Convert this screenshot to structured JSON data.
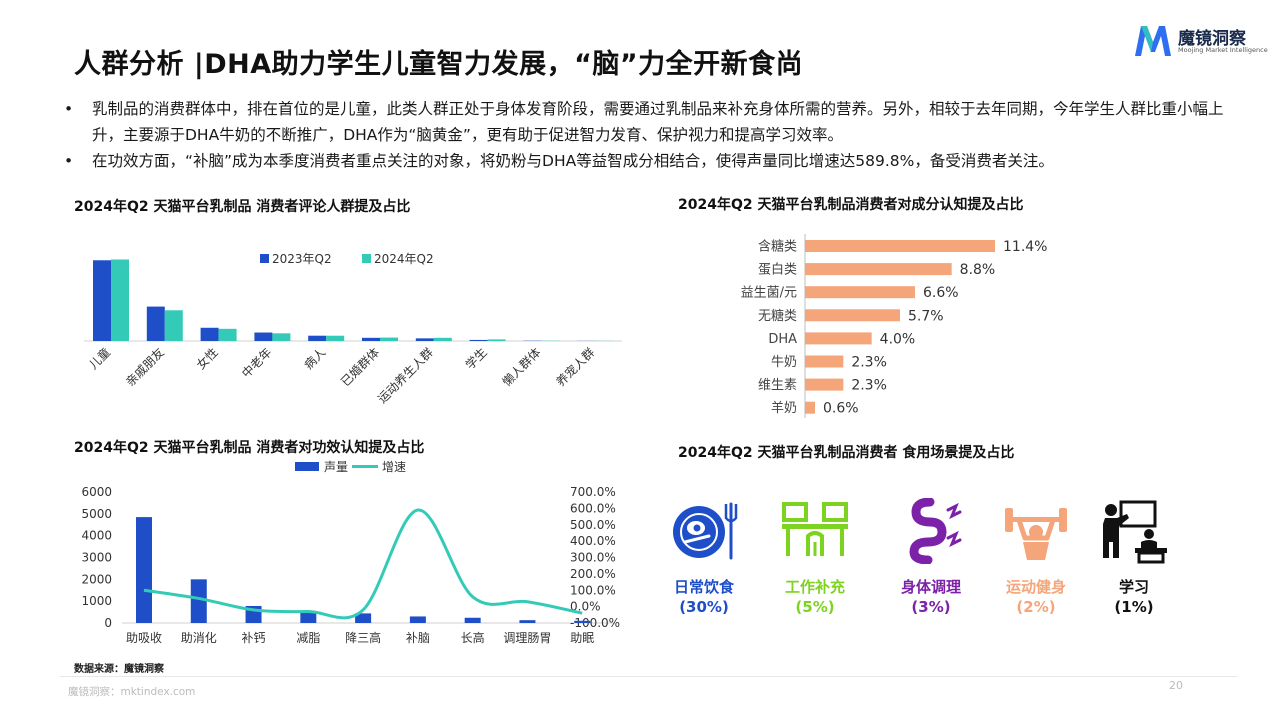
{
  "title": "人群分析 |DHA助力学生儿童智力发展，“脑”力全开新食尚",
  "logo": {
    "name": "魔镜洞察",
    "sub": "Moojing Market Intelligence"
  },
  "bullets": [
    "乳制品的消费群体中，排在首位的是儿童，此类人群正处于身体发育阶段，需要通过乳制品来补充身体所需的营养。另外，相较于去年同期，今年学生人群比重小幅上升，主要源于DHA牛奶的不断推广，DHA作为“脑黄金”，更有助于促进智力发育、保护视力和提高学习效率。",
    "在功效方面，“补脑”成为本季度消费者重点关注的对象，将奶粉与DHA等益智成分相结合，使得声量同比增速达589.8%，备受消费者关注。"
  ],
  "chart_data": [
    {
      "type": "bar",
      "title": "2024年Q2 天猫平台乳制品 消费者评论人群提及占比",
      "categories": [
        "儿童",
        "亲戚朋友",
        "女性",
        "中老年",
        "病人",
        "已婚群体",
        "运动养生人群",
        "学生",
        "懒人群体",
        "养宠人群"
      ],
      "series": [
        {
          "name": "2023年Q2",
          "color": "#1f4fc8",
          "values": [
            30.5,
            13.0,
            5.0,
            3.2,
            2.0,
            1.2,
            1.0,
            0.4,
            0.1,
            0.05
          ]
        },
        {
          "name": "2024年Q2",
          "color": "#33cbb7",
          "values": [
            30.8,
            11.6,
            4.6,
            2.9,
            2.0,
            1.3,
            1.2,
            0.6,
            0.1,
            0.05
          ]
        }
      ],
      "ylim": [
        0,
        34
      ],
      "grid": false,
      "legend": "top"
    },
    {
      "type": "bar",
      "orientation": "horizontal",
      "title": "2024年Q2 天猫平台乳制品消费者对成分认知提及占比",
      "categories": [
        "含糖类",
        "蛋白类",
        "益生菌/元",
        "无糖类",
        "DHA",
        "牛奶",
        "维生素",
        "羊奶"
      ],
      "values": [
        11.4,
        8.8,
        6.6,
        5.7,
        4.0,
        2.3,
        2.3,
        0.6
      ],
      "value_labels": [
        "11.4%",
        "8.8%",
        "6.6%",
        "5.7%",
        "4.0%",
        "2.3%",
        "2.3%",
        "0.6%"
      ],
      "color": "#f5a57a",
      "xlim": [
        0,
        12
      ]
    },
    {
      "type": "bar",
      "title": "2024年Q2 天猫平台乳制品 消费者对功效认知提及占比",
      "categories": [
        "助吸收",
        "助消化",
        "补钙",
        "减脂",
        "降三高",
        "补脑",
        "长高",
        "调理肠胃",
        "助眠"
      ],
      "series": [
        {
          "name": "声量",
          "type": "bar",
          "axis": "left",
          "color": "#1f4fc8",
          "values": [
            4850,
            2000,
            780,
            470,
            440,
            300,
            240,
            130,
            100
          ]
        },
        {
          "name": "增速",
          "type": "line",
          "axis": "right",
          "color": "#33cbb7",
          "values": [
            100.0,
            50.0,
            -20.0,
            -30.0,
            -20.0,
            589.8,
            60.0,
            30.0,
            -40.0
          ]
        }
      ],
      "y_left": {
        "ticks": [
          "0",
          "1000",
          "2000",
          "3000",
          "4000",
          "5000",
          "6000"
        ],
        "range": [
          0,
          6000
        ]
      },
      "y_right": {
        "ticks": [
          "-100.0%",
          "0.0%",
          "100.0%",
          "200.0%",
          "300.0%",
          "400.0%",
          "500.0%",
          "600.0%",
          "700.0%"
        ],
        "range": [
          -100,
          700
        ]
      },
      "legend": "top"
    }
  ],
  "scenes": {
    "title": "2024年Q2 天猫平台乳制品消费者 食用场景提及占比",
    "items": [
      {
        "name": "日常饮食",
        "pct": "(30%)",
        "color": "#1f4fc8",
        "icon": "dining-plate-icon"
      },
      {
        "name": "工作补充",
        "pct": "(5%)",
        "color": "#7ed321",
        "icon": "office-desk-icon"
      },
      {
        "name": "身体调理",
        "pct": "(3%)",
        "color": "#7b22a8",
        "icon": "intestine-icon"
      },
      {
        "name": "运动健身",
        "pct": "(2%)",
        "color": "#f5a57a",
        "icon": "weightlifting-icon"
      },
      {
        "name": "学习",
        "pct": "(1%)",
        "color": "#111111",
        "icon": "teacher-board-icon"
      }
    ]
  },
  "source": "数据来源：魔镜洞察",
  "footer": "魔镜洞察：mktindex.com",
  "page_number": "20"
}
